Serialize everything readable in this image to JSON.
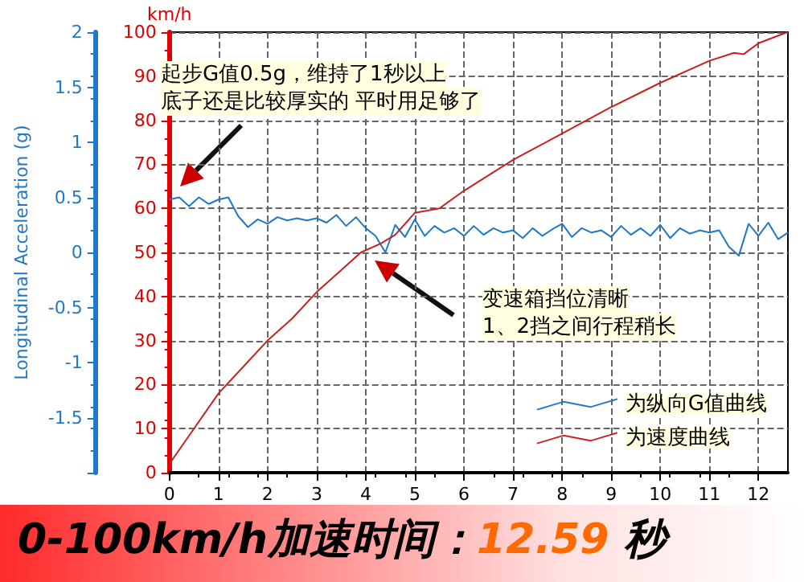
{
  "chart_data": {
    "type": "line",
    "title": "0-100km/h加速时间：12.59 秒",
    "ylabel": "km/h",
    "y2label": "Longitudinal Acceleration (g)",
    "annotations": [
      "起步G值0.5g，维持了1秒以上",
      "底子还是比较厚实的 平时用足够了",
      "变速箱挡位清晰",
      "1、2挡之间行程稍长"
    ],
    "series": [
      {
        "name": "为纵向G值曲线",
        "color": "#1f78c8",
        "axis": "y2",
        "x": [
          0,
          0.2,
          0.4,
          0.6,
          0.8,
          1.0,
          1.2,
          1.4,
          1.6,
          1.8,
          2.0,
          2.2,
          2.4,
          2.6,
          2.8,
          3.0,
          3.2,
          3.4,
          3.6,
          3.8,
          4.0,
          4.2,
          4.4,
          4.6,
          4.8,
          5.0,
          5.2,
          5.4,
          5.6,
          5.8,
          6.0,
          6.2,
          6.4,
          6.6,
          6.8,
          7.0,
          7.2,
          7.4,
          7.6,
          7.8,
          8.0,
          8.2,
          8.4,
          8.6,
          8.8,
          9.0,
          9.2,
          9.4,
          9.6,
          9.8,
          10.0,
          10.2,
          10.4,
          10.6,
          10.8,
          11.0,
          11.2,
          11.4,
          11.6,
          11.8,
          12.0,
          12.2,
          12.4,
          12.6
        ],
        "values": [
          0.48,
          0.5,
          0.42,
          0.5,
          0.44,
          0.48,
          0.5,
          0.33,
          0.23,
          0.3,
          0.26,
          0.32,
          0.29,
          0.31,
          0.29,
          0.31,
          0.27,
          0.34,
          0.24,
          0.32,
          0.22,
          0.15,
          0.0,
          0.25,
          0.14,
          0.3,
          0.15,
          0.24,
          0.18,
          0.22,
          0.15,
          0.24,
          0.16,
          0.22,
          0.18,
          0.2,
          0.13,
          0.22,
          0.15,
          0.21,
          0.26,
          0.14,
          0.22,
          0.18,
          0.2,
          0.14,
          0.24,
          0.16,
          0.22,
          0.15,
          0.25,
          0.13,
          0.22,
          0.17,
          0.2,
          0.18,
          0.2,
          0.05,
          -0.03,
          0.26,
          0.15,
          0.27,
          0.12,
          0.18
        ]
      },
      {
        "name": "为速度曲线",
        "color": "#cc1f1f",
        "x": [
          0,
          0.5,
          1,
          1.5,
          2,
          2.5,
          3,
          3.5,
          3.9,
          4.3,
          4.6,
          5,
          5.5,
          6,
          7,
          8,
          9,
          10,
          11,
          11.5,
          11.7,
          12,
          12.59
        ],
        "values": [
          2,
          10,
          18,
          24,
          30,
          35,
          41,
          46,
          50,
          52,
          54,
          59,
          60,
          64,
          71,
          77,
          83,
          88.5,
          93.5,
          95.3,
          95,
          97.5,
          100
        ]
      }
    ],
    "xlim": [
      0,
      12.6
    ],
    "xticks": [
      0,
      1,
      2,
      3,
      4,
      5,
      6,
      7,
      8,
      9,
      10,
      11,
      12
    ],
    "ylim": [
      0,
      100
    ],
    "yticks": [
      0,
      10,
      20,
      30,
      40,
      50,
      60,
      70,
      80,
      90,
      100
    ],
    "y2lim": [
      -2,
      2
    ],
    "y2ticks": [
      {
        "value": -2,
        "label": null
      },
      -1.5,
      -1,
      -0.5,
      0,
      0.5,
      1,
      1.5,
      2
    ],
    "grid": true,
    "legend": "bottom right",
    "marker": "none",
    "line_style": "solid"
  }
}
